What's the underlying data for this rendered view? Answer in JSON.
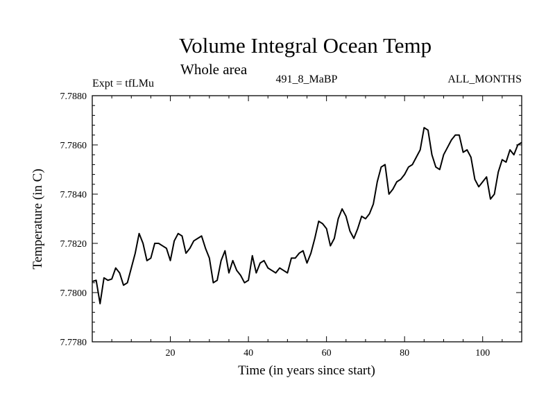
{
  "header": {
    "title": "Volume Integral Ocean Temp",
    "subtitle": "Whole area",
    "expt": "Expt = tfLMu",
    "run": "491_8_MaBP",
    "months": "ALL_MONTHS"
  },
  "chart_data": {
    "type": "line",
    "title": "Volume Integral Ocean Temp",
    "xlabel": "Time (in years since start)",
    "ylabel": "Temperature (in C)",
    "xlim": [
      0,
      110
    ],
    "ylim": [
      7.778,
      7.788
    ],
    "xticks": [
      20,
      40,
      60,
      80,
      100
    ],
    "yticks": [
      7.778,
      7.78,
      7.782,
      7.784,
      7.786,
      7.788
    ],
    "ytick_labels": [
      "7.7780",
      "7.7800",
      "7.7820",
      "7.7840",
      "7.7860",
      "7.7880"
    ],
    "series": [
      {
        "name": "Volume Integral Ocean Temp",
        "x": [
          0,
          1,
          2,
          3,
          4,
          5,
          6,
          7,
          8,
          9,
          10,
          11,
          12,
          13,
          14,
          15,
          16,
          17,
          18,
          19,
          20,
          21,
          22,
          23,
          24,
          25,
          26,
          27,
          28,
          29,
          30,
          31,
          32,
          33,
          34,
          35,
          36,
          37,
          38,
          39,
          40,
          41,
          42,
          43,
          44,
          45,
          46,
          47,
          48,
          49,
          50,
          51,
          52,
          53,
          54,
          55,
          56,
          57,
          58,
          59,
          60,
          61,
          62,
          63,
          64,
          65,
          66,
          67,
          68,
          69,
          70,
          71,
          72,
          73,
          74,
          75,
          76,
          77,
          78,
          79,
          80,
          81,
          82,
          83,
          84,
          85,
          86,
          87,
          88,
          89,
          90,
          91,
          92,
          93,
          94,
          95,
          96,
          97,
          98,
          99,
          100,
          101,
          102,
          103,
          104,
          105,
          106,
          107,
          108,
          109,
          110
        ],
        "values": [
          7.78045,
          7.7805,
          7.77955,
          7.7806,
          7.7805,
          7.78055,
          7.781,
          7.7808,
          7.7803,
          7.7804,
          7.781,
          7.7816,
          7.7824,
          7.782,
          7.7813,
          7.7814,
          7.782,
          7.782,
          7.7819,
          7.7818,
          7.7813,
          7.7821,
          7.7824,
          7.7823,
          7.7816,
          7.7818,
          7.7821,
          7.7822,
          7.7823,
          7.7818,
          7.7814,
          7.7804,
          7.7805,
          7.7813,
          7.7817,
          7.7808,
          7.7813,
          7.7809,
          7.7807,
          7.7804,
          7.7805,
          7.7815,
          7.7808,
          7.7812,
          7.7813,
          7.781,
          7.7809,
          7.7808,
          7.781,
          7.7809,
          7.7808,
          7.7814,
          7.7814,
          7.7816,
          7.7817,
          7.7812,
          7.7816,
          7.7822,
          7.7829,
          7.7828,
          7.7826,
          7.7819,
          7.7822,
          7.783,
          7.7834,
          7.7831,
          7.7825,
          7.7822,
          7.7826,
          7.7831,
          7.783,
          7.7832,
          7.7836,
          7.7845,
          7.7851,
          7.7852,
          7.784,
          7.7842,
          7.7845,
          7.7846,
          7.7848,
          7.7851,
          7.7852,
          7.7855,
          7.7858,
          7.7867,
          7.7866,
          7.7856,
          7.7851,
          7.785,
          7.7856,
          7.7859,
          7.7862,
          7.7864,
          7.7864,
          7.7857,
          7.7858,
          7.7855,
          7.7846,
          7.7843,
          7.7845,
          7.7847,
          7.7838,
          7.784,
          7.7849,
          7.7854,
          7.7853,
          7.7858,
          7.7856,
          7.786,
          7.7861
        ]
      }
    ]
  }
}
